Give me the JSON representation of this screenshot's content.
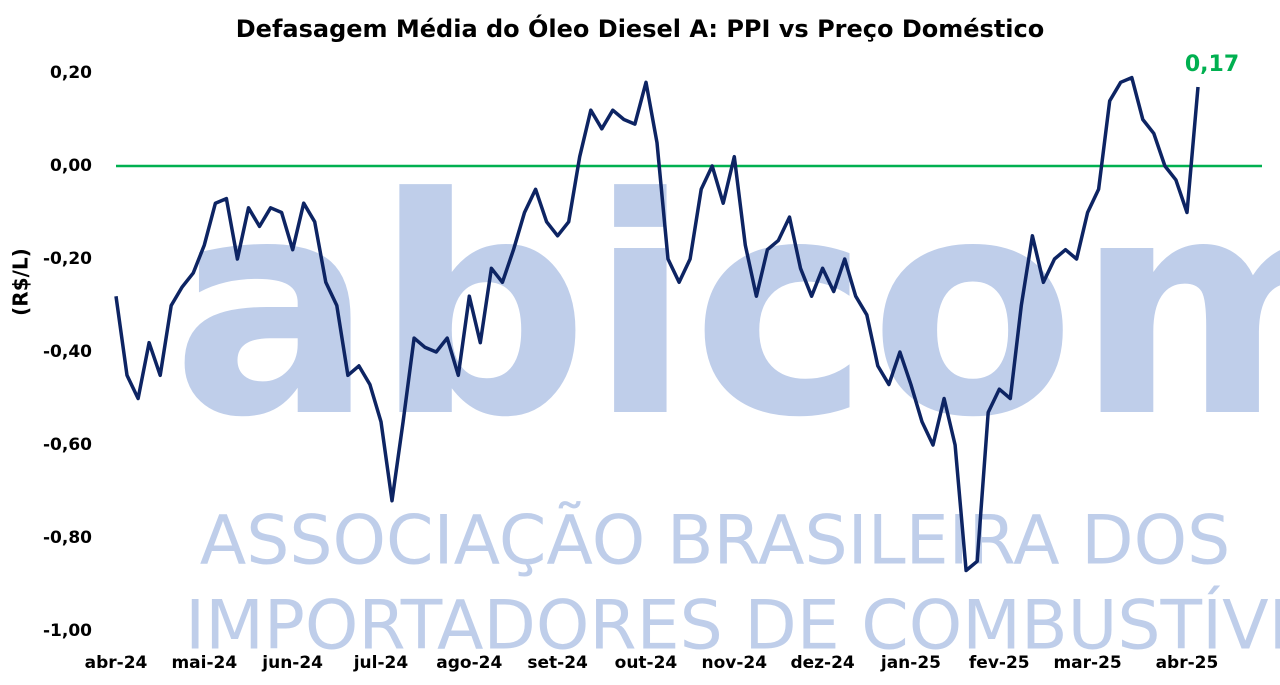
{
  "chart_data": {
    "type": "line",
    "title": "Defasagem Média do Óleo Diesel A: PPI vs Preço Doméstico",
    "y_label": "(R$/L)",
    "watermark": [
      "abicom",
      "ASSOCIAÇÃO BRASILEIRA DOS",
      "IMPORTADORES DE COMBUSTÍVEIS"
    ],
    "categories": [
      "abr-24",
      null,
      null,
      null,
      null,
      null,
      null,
      null,
      "mai-24",
      null,
      null,
      null,
      null,
      null,
      null,
      null,
      "jun-24",
      null,
      null,
      null,
      null,
      null,
      null,
      null,
      "jul-24",
      null,
      null,
      null,
      null,
      null,
      null,
      null,
      "ago-24",
      null,
      null,
      null,
      null,
      null,
      null,
      null,
      "set-24",
      null,
      null,
      null,
      null,
      null,
      null,
      null,
      "out-24",
      null,
      null,
      null,
      null,
      null,
      null,
      null,
      "nov-24",
      null,
      null,
      null,
      null,
      null,
      null,
      null,
      "dez-24",
      null,
      null,
      null,
      null,
      null,
      null,
      null,
      "jan-25",
      null,
      null,
      null,
      null,
      null,
      null,
      null,
      "fev-25",
      null,
      null,
      null,
      null,
      null,
      null,
      null,
      "mar-25",
      null,
      null,
      null,
      null,
      null,
      null,
      null,
      null,
      "abr-25",
      null
    ],
    "series": [
      {
        "color": "#0d2463",
        "values": [
          -0.28,
          -0.45,
          -0.5,
          -0.38,
          -0.45,
          -0.3,
          -0.26,
          -0.23,
          -0.17,
          -0.08,
          -0.07,
          -0.2,
          -0.09,
          -0.13,
          -0.09,
          -0.1,
          -0.18,
          -0.08,
          -0.12,
          -0.25,
          -0.3,
          -0.45,
          -0.43,
          -0.47,
          -0.55,
          -0.72,
          -0.55,
          -0.37,
          -0.39,
          -0.4,
          -0.37,
          -0.45,
          -0.28,
          -0.38,
          -0.22,
          -0.25,
          -0.18,
          -0.1,
          -0.05,
          -0.12,
          -0.15,
          -0.12,
          0.02,
          0.12,
          0.08,
          0.12,
          0.1,
          0.09,
          0.18,
          0.05,
          -0.2,
          -0.25,
          -0.2,
          -0.05,
          0.0,
          -0.08,
          0.02,
          -0.17,
          -0.28,
          -0.18,
          -0.16,
          -0.11,
          -0.22,
          -0.28,
          -0.22,
          -0.27,
          -0.2,
          -0.28,
          -0.32,
          -0.43,
          -0.47,
          -0.4,
          -0.47,
          -0.55,
          -0.6,
          -0.5,
          -0.6,
          -0.87,
          -0.85,
          -0.53,
          -0.48,
          -0.5,
          -0.3,
          -0.15,
          -0.25,
          -0.2,
          -0.18,
          -0.2,
          -0.1,
          -0.05,
          0.14,
          0.18,
          0.19,
          0.1,
          0.07,
          0.0,
          -0.03,
          -0.1,
          0.17
        ],
        "value_labels": [
          null,
          null,
          null,
          null,
          null,
          null,
          null,
          null,
          null,
          null,
          null,
          null,
          null,
          null,
          null,
          null,
          null,
          null,
          null,
          null,
          null,
          null,
          null,
          null,
          null,
          null,
          null,
          null,
          null,
          null,
          null,
          null,
          null,
          null,
          null,
          null,
          null,
          null,
          null,
          null,
          null,
          null,
          null,
          null,
          null,
          null,
          null,
          null,
          null,
          null,
          null,
          null,
          null,
          null,
          null,
          null,
          null,
          null,
          null,
          null,
          null,
          null,
          null,
          null,
          null,
          null,
          null,
          null,
          null,
          null,
          null,
          null,
          null,
          null,
          null,
          null,
          null,
          null,
          null,
          null,
          null,
          null,
          null,
          null,
          null,
          null,
          null,
          null,
          null,
          null,
          null,
          null,
          null,
          null,
          null,
          null,
          null,
          null,
          "0,17"
        ],
        "label_color": "#00b050"
      }
    ],
    "hline": {
      "value": 0,
      "color": "#00b050"
    },
    "ylim": [
      -1.0,
      0.2
    ],
    "yticks": [
      {
        "value": -1.0,
        "label": "-1,00"
      },
      {
        "value": -0.8,
        "label": "-0,80"
      },
      {
        "value": -0.6,
        "label": "-0,60"
      },
      {
        "value": -0.4,
        "label": "-0,40"
      },
      {
        "value": -0.2,
        "label": "-0,20"
      },
      {
        "value": 0,
        "label": "0,00"
      },
      {
        "value": 0.2,
        "label": "0,20"
      }
    ],
    "grid": false
  }
}
